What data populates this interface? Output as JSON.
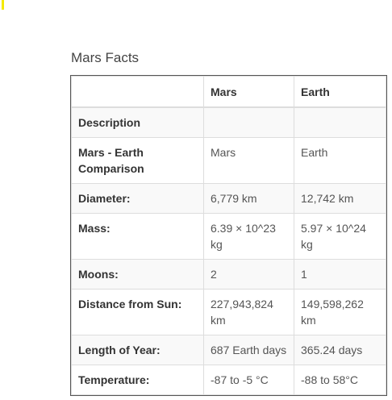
{
  "title": "Mars Facts",
  "table": {
    "headers": [
      "",
      "Mars",
      "Earth"
    ],
    "rows": [
      {
        "label": "Description",
        "mars": "",
        "earth": ""
      },
      {
        "label": "Mars - Earth Comparison",
        "mars": "Mars",
        "earth": "Earth"
      },
      {
        "label": "Diameter:",
        "mars": "6,779 km",
        "earth": "12,742 km"
      },
      {
        "label": "Mass:",
        "mars": "6.39 × 10^23 kg",
        "earth": "5.97 × 10^24 kg"
      },
      {
        "label": "Moons:",
        "mars": "2",
        "earth": "1"
      },
      {
        "label": "Distance from Sun:",
        "mars": "227,943,824 km",
        "earth": "149,598,262 km"
      },
      {
        "label": "Length of Year:",
        "mars": "687 Earth days",
        "earth": "365.24 days"
      },
      {
        "label": "Temperature:",
        "mars": "-87 to -5 °C",
        "earth": "-88 to 58°C"
      }
    ]
  },
  "colors": {
    "marker": "#f5ea00",
    "border": "#dddddd",
    "outer_border": "#555555",
    "stripe": "#f9f9f9"
  }
}
